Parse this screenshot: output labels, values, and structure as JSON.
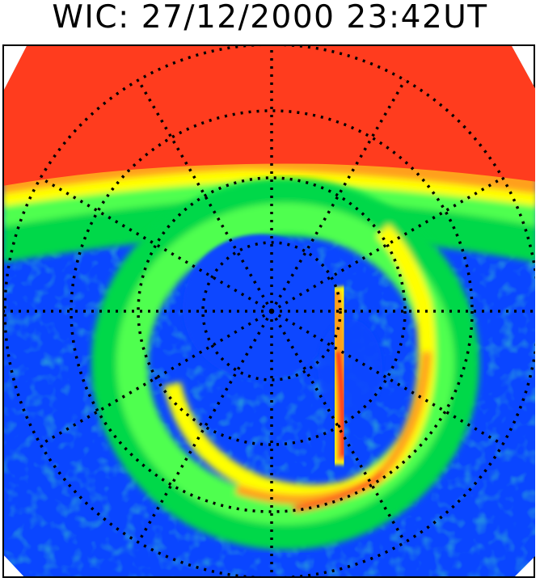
{
  "title": "WIC: 27/12/2000 23:42UT",
  "colors": {
    "background_red": "#ff3c1e",
    "orange": "#ffa01e",
    "yellow": "#ffff00",
    "light_green": "#50ff50",
    "green": "#00d84a",
    "teal": "#20b090",
    "blue": "#0a46ff",
    "grid": "#000000"
  }
}
